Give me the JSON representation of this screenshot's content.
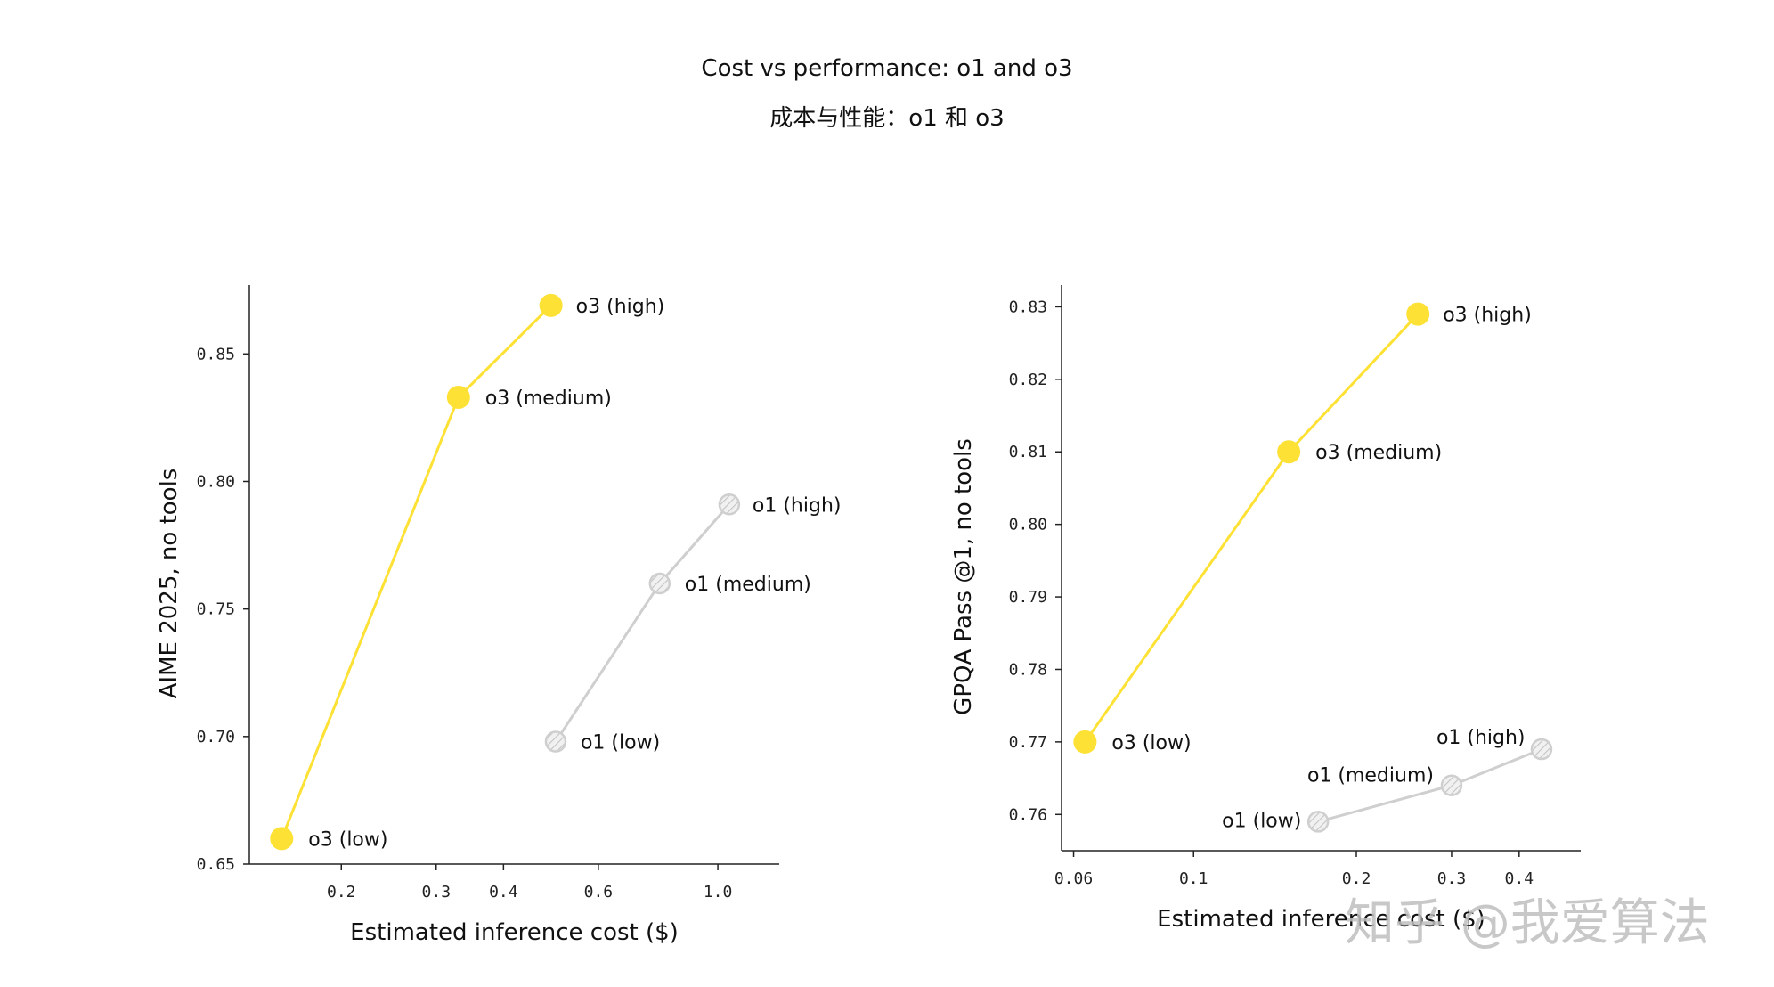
{
  "title": "Cost vs performance: o1 and o3",
  "subtitle": "成本与性能：o1 和 o3",
  "watermark": "知乎 @我爱算法",
  "colors": {
    "o3": "#FDE135",
    "o1_fill": "#F1F1F1",
    "o1_line": "#CFCFCF",
    "axis": "#222222"
  },
  "chart_data": [
    {
      "type": "line",
      "xscale": "log",
      "xlabel": "Estimated inference cost ($)",
      "ylabel": "AIME 2025, no tools",
      "xlim": [
        0.135,
        1.3
      ],
      "ylim": [
        0.65,
        0.877
      ],
      "xticks": [
        0.2,
        0.3,
        0.4,
        0.6,
        1.0
      ],
      "xtick_labels": [
        "0.2",
        "0.3",
        "0.4",
        "0.6",
        "1.0"
      ],
      "yticks": [
        0.65,
        0.7,
        0.75,
        0.8,
        0.85
      ],
      "ytick_labels": [
        "0.65",
        "0.70",
        "0.75",
        "0.80",
        "0.85"
      ],
      "series": [
        {
          "name": "o3",
          "points": [
            {
              "x": 0.155,
              "y": 0.66,
              "label": "o3 (low)"
            },
            {
              "x": 0.33,
              "y": 0.833,
              "label": "o3 (medium)"
            },
            {
              "x": 0.49,
              "y": 0.869,
              "label": "o3 (high)"
            }
          ]
        },
        {
          "name": "o1",
          "points": [
            {
              "x": 0.5,
              "y": 0.698,
              "label": "o1 (low)"
            },
            {
              "x": 0.78,
              "y": 0.76,
              "label": "o1 (medium)"
            },
            {
              "x": 1.05,
              "y": 0.791,
              "label": "o1 (high)"
            }
          ]
        }
      ]
    },
    {
      "type": "line",
      "xscale": "log",
      "xlabel": "Estimated inference cost ($)",
      "ylabel": "GPQA Pass @1, no tools",
      "xlim": [
        0.057,
        0.52
      ],
      "ylim": [
        0.755,
        0.833
      ],
      "xticks": [
        0.06,
        0.1,
        0.2,
        0.3,
        0.4
      ],
      "xtick_labels": [
        "0.06",
        "0.1",
        "0.2",
        "0.3",
        "0.4"
      ],
      "yticks": [
        0.76,
        0.77,
        0.78,
        0.79,
        0.8,
        0.81,
        0.82,
        0.83
      ],
      "ytick_labels": [
        "0.76",
        "0.77",
        "0.78",
        "0.79",
        "0.80",
        "0.81",
        "0.82",
        "0.83"
      ],
      "series": [
        {
          "name": "o3",
          "points": [
            {
              "x": 0.063,
              "y": 0.77,
              "label": "o3 (low)"
            },
            {
              "x": 0.15,
              "y": 0.81,
              "label": "o3 (medium)"
            },
            {
              "x": 0.26,
              "y": 0.829,
              "label": "o3 (high)"
            }
          ]
        },
        {
          "name": "o1",
          "points": [
            {
              "x": 0.17,
              "y": 0.759,
              "label": "o1 (low)"
            },
            {
              "x": 0.3,
              "y": 0.764,
              "label": "o1 (medium)"
            },
            {
              "x": 0.44,
              "y": 0.769,
              "label": "o1 (high)"
            }
          ]
        }
      ]
    }
  ]
}
